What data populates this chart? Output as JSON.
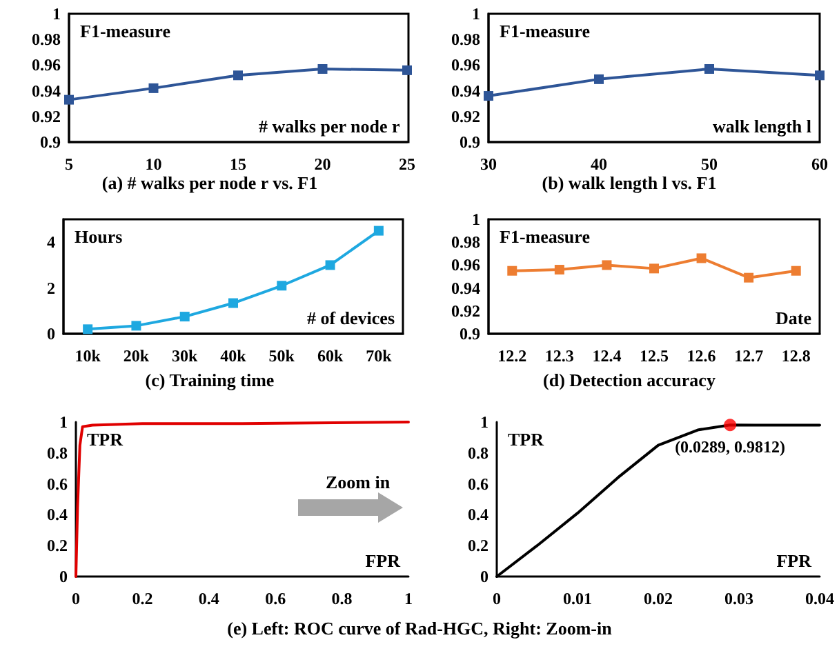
{
  "chart_data": [
    {
      "type": "line",
      "title": "(a) # walks per node r vs. F1",
      "xlabel": "# walks per node r",
      "ylabel": "F1-measure",
      "x": [
        5,
        10,
        15,
        20,
        25
      ],
      "series": [
        {
          "color": "#2e5597",
          "values": [
            0.933,
            0.942,
            0.952,
            0.957,
            0.956
          ]
        }
      ],
      "xlim": [
        5,
        25
      ],
      "xticks": [
        5,
        10,
        15,
        20,
        25
      ],
      "ylim": [
        0.9,
        1
      ],
      "yticks": [
        0.9,
        0.92,
        0.94,
        0.96,
        0.98,
        1
      ],
      "marker": "square"
    },
    {
      "type": "line",
      "title": "(b) walk length l vs. F1",
      "xlabel": "walk length l",
      "ylabel": "F1-measure",
      "x": [
        30,
        40,
        50,
        60
      ],
      "series": [
        {
          "color": "#2e5597",
          "values": [
            0.936,
            0.949,
            0.957,
            0.952
          ]
        }
      ],
      "xlim": [
        30,
        60
      ],
      "xticks": [
        30,
        40,
        50,
        60
      ],
      "ylim": [
        0.9,
        1
      ],
      "yticks": [
        0.9,
        0.92,
        0.94,
        0.96,
        0.98,
        1
      ],
      "marker": "square"
    },
    {
      "type": "line",
      "title": "(c) Training time",
      "xlabel": "# of devices",
      "ylabel": "Hours",
      "categories": [
        "10k",
        "20k",
        "30k",
        "40k",
        "50k",
        "60k",
        "70k"
      ],
      "series": [
        {
          "color": "#1ea8e0",
          "values": [
            0.2,
            0.35,
            0.75,
            1.34,
            2.1,
            3.0,
            4.5
          ]
        }
      ],
      "ylim": [
        0,
        5
      ],
      "yticks": [
        0,
        2,
        4
      ],
      "marker": "square"
    },
    {
      "type": "line",
      "title": "(d) Detection accuracy",
      "xlabel": "Date",
      "ylabel": "F1-measure",
      "categories": [
        "12.2",
        "12.3",
        "12.4",
        "12.5",
        "12.6",
        "12.7",
        "12.8"
      ],
      "series": [
        {
          "color": "#ed7d31",
          "values": [
            0.955,
            0.956,
            0.96,
            0.957,
            0.966,
            0.949,
            0.955
          ]
        }
      ],
      "ylim": [
        0.9,
        1
      ],
      "yticks": [
        0.9,
        0.92,
        0.94,
        0.96,
        0.98,
        1
      ],
      "marker": "square"
    },
    {
      "type": "line",
      "xlabel": "FPR",
      "ylabel": "TPR",
      "annotations": [
        "Zoom in",
        "(e) Left: ROC curve of Rad-HGC, Right: Zoom-in"
      ],
      "series": [
        {
          "color": "#e00000",
          "x": [
            0,
            0.005,
            0.012,
            0.02,
            0.05,
            0.2,
            0.5,
            1
          ],
          "values": [
            0,
            0.45,
            0.85,
            0.97,
            0.98,
            0.99,
            0.99,
            1
          ]
        }
      ],
      "xlim": [
        0,
        1
      ],
      "xticks": [
        0,
        0.2,
        0.4,
        0.6,
        0.8,
        1
      ],
      "ylim": [
        0,
        1
      ],
      "yticks": [
        0,
        0.2,
        0.4,
        0.6,
        0.8,
        1
      ],
      "marker": "none"
    },
    {
      "type": "line",
      "xlabel": "FPR",
      "ylabel": "TPR",
      "annotations": [
        {
          "text": "(0.0289, 0.9812)",
          "x": 0.0289,
          "y": 0.9812
        }
      ],
      "series": [
        {
          "color": "#000000",
          "x": [
            0,
            0.005,
            0.01,
            0.015,
            0.02,
            0.025,
            0.0289,
            0.032,
            0.04
          ],
          "values": [
            0,
            0.2,
            0.41,
            0.64,
            0.85,
            0.95,
            0.9812,
            0.98,
            0.98
          ]
        },
        {
          "type": "scatter",
          "color": "#ff0000",
          "marker": "circle",
          "x": [
            0.0289
          ],
          "values": [
            0.9812
          ]
        }
      ],
      "xlim": [
        0,
        0.04
      ],
      "xticks": [
        0,
        0.01,
        0.02,
        0.03,
        0.04
      ],
      "ylim": [
        0,
        1
      ],
      "yticks": [
        0,
        0.2,
        0.4,
        0.6,
        0.8,
        1
      ],
      "marker": "none"
    }
  ]
}
